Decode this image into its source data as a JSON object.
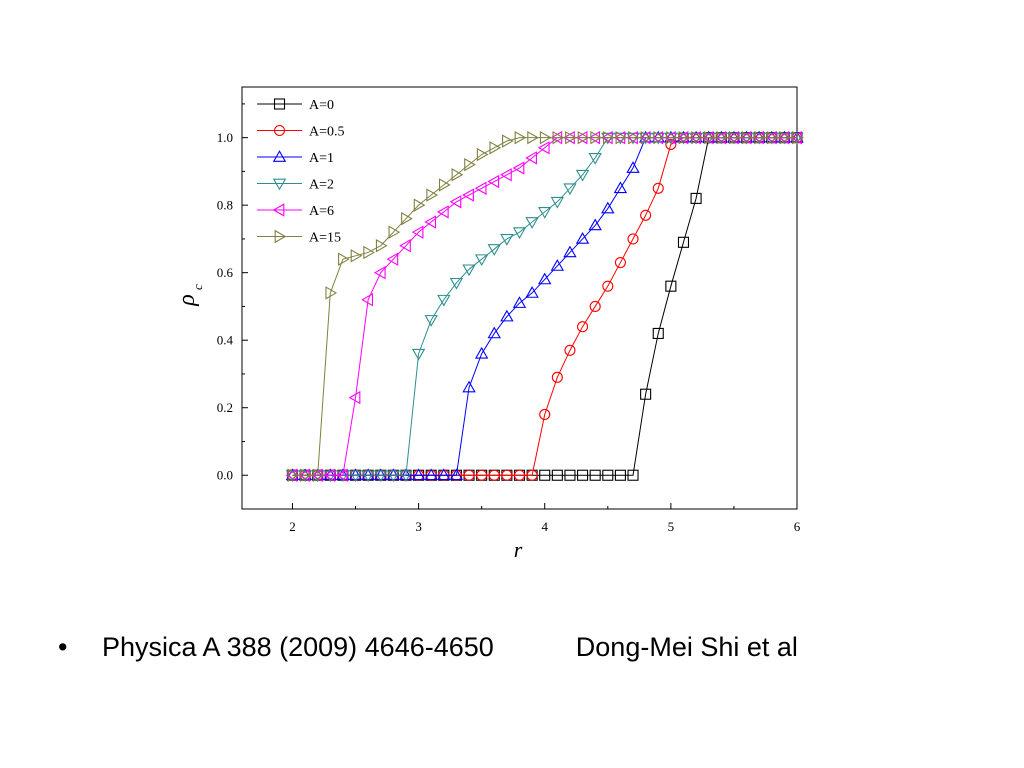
{
  "chart_data": {
    "type": "line",
    "xlabel": "r",
    "ylabel": "ρ",
    "ylabel_sub": "c",
    "xlim": [
      1.6,
      6
    ],
    "ylim": [
      -0.1,
      1.15
    ],
    "xticks": [
      "2",
      "3",
      "4",
      "5",
      "6"
    ],
    "xtick_values": [
      2,
      3,
      4,
      5,
      6
    ],
    "yticks": [
      "0.0",
      "0.2",
      "0.4",
      "0.6",
      "0.8",
      "1.0"
    ],
    "ytick_values": [
      0,
      0.2,
      0.4,
      0.6,
      0.8,
      1.0
    ],
    "legend_position": "top-left",
    "series": [
      {
        "name": "A=0",
        "color": "#000000",
        "marker": "square",
        "x": [
          2.0,
          2.1,
          2.2,
          2.3,
          2.4,
          2.5,
          2.6,
          2.7,
          2.8,
          2.9,
          3.0,
          3.1,
          3.2,
          3.3,
          3.4,
          3.5,
          3.6,
          3.7,
          3.8,
          3.9,
          4.0,
          4.1,
          4.2,
          4.3,
          4.4,
          4.5,
          4.6,
          4.7,
          4.8,
          4.9,
          5.0,
          5.1,
          5.2,
          5.3,
          5.4,
          5.5,
          5.6,
          5.7,
          5.8,
          5.9,
          6.0
        ],
        "y": [
          0,
          0,
          0,
          0,
          0,
          0,
          0,
          0,
          0,
          0,
          0,
          0,
          0,
          0,
          0,
          0,
          0,
          0,
          0,
          0,
          0,
          0,
          0,
          0,
          0,
          0,
          0,
          0,
          0.24,
          0.42,
          0.56,
          0.69,
          0.82,
          1,
          1,
          1,
          1,
          1,
          1,
          1,
          1
        ]
      },
      {
        "name": "A=0.5",
        "color": "#ff0000",
        "marker": "circle",
        "x": [
          2.0,
          2.1,
          2.2,
          2.3,
          2.4,
          2.5,
          2.6,
          2.7,
          2.8,
          2.9,
          3.0,
          3.1,
          3.2,
          3.3,
          3.4,
          3.5,
          3.6,
          3.7,
          3.8,
          3.9,
          4.0,
          4.1,
          4.2,
          4.3,
          4.4,
          4.5,
          4.6,
          4.7,
          4.8,
          4.9,
          5.0,
          5.1,
          5.2,
          5.3,
          5.4,
          5.5,
          5.6,
          5.7,
          5.8,
          5.9,
          6.0
        ],
        "y": [
          0,
          0,
          0,
          0,
          0,
          0,
          0,
          0,
          0,
          0,
          0,
          0,
          0,
          0,
          0,
          0,
          0,
          0,
          0,
          0,
          0.18,
          0.29,
          0.37,
          0.44,
          0.5,
          0.56,
          0.63,
          0.7,
          0.77,
          0.85,
          0.98,
          1,
          1,
          1,
          1,
          1,
          1,
          1,
          1,
          1,
          1
        ]
      },
      {
        "name": "A=1",
        "color": "#0000ff",
        "marker": "triangle-up",
        "x": [
          2.0,
          2.1,
          2.2,
          2.3,
          2.4,
          2.5,
          2.6,
          2.7,
          2.8,
          2.9,
          3.0,
          3.1,
          3.2,
          3.3,
          3.4,
          3.5,
          3.6,
          3.7,
          3.8,
          3.9,
          4.0,
          4.1,
          4.2,
          4.3,
          4.4,
          4.5,
          4.6,
          4.7,
          4.8,
          4.9,
          5.0,
          5.1,
          5.2,
          5.3,
          5.4,
          5.5,
          5.6,
          5.7,
          5.8,
          5.9,
          6.0
        ],
        "y": [
          0,
          0,
          0,
          0,
          0,
          0,
          0,
          0,
          0,
          0,
          0,
          0,
          0,
          0,
          0.26,
          0.36,
          0.42,
          0.47,
          0.51,
          0.54,
          0.58,
          0.62,
          0.66,
          0.7,
          0.74,
          0.79,
          0.85,
          0.91,
          1,
          1,
          1,
          1,
          1,
          1,
          1,
          1,
          1,
          1,
          1,
          1,
          1
        ]
      },
      {
        "name": "A=2",
        "color": "#2f8f8f",
        "marker": "triangle-down",
        "x": [
          2.0,
          2.1,
          2.2,
          2.3,
          2.4,
          2.5,
          2.6,
          2.7,
          2.8,
          2.9,
          3.0,
          3.1,
          3.2,
          3.3,
          3.4,
          3.5,
          3.6,
          3.7,
          3.8,
          3.9,
          4.0,
          4.1,
          4.2,
          4.3,
          4.4,
          4.5,
          4.6,
          4.7,
          4.8,
          4.9,
          5.0,
          5.1,
          5.2,
          5.3,
          5.4,
          5.5,
          5.6,
          5.7,
          5.8,
          5.9,
          6.0
        ],
        "y": [
          0,
          0,
          0,
          0,
          0,
          0,
          0,
          0,
          0,
          0,
          0.36,
          0.46,
          0.52,
          0.57,
          0.61,
          0.64,
          0.67,
          0.7,
          0.72,
          0.75,
          0.78,
          0.81,
          0.85,
          0.89,
          0.94,
          1,
          1,
          1,
          1,
          1,
          1,
          1,
          1,
          1,
          1,
          1,
          1,
          1,
          1,
          1,
          1
        ]
      },
      {
        "name": "A=6",
        "color": "#ff00ff",
        "marker": "triangle-left",
        "x": [
          2.0,
          2.1,
          2.2,
          2.3,
          2.4,
          2.5,
          2.6,
          2.7,
          2.8,
          2.9,
          3.0,
          3.1,
          3.2,
          3.3,
          3.4,
          3.5,
          3.6,
          3.7,
          3.8,
          3.9,
          4.0,
          4.1,
          4.2,
          4.3,
          4.4,
          4.5,
          4.6,
          4.7,
          4.8,
          4.9,
          5.0,
          5.1,
          5.2,
          5.3,
          5.4,
          5.5,
          5.6,
          5.7,
          5.8,
          5.9,
          6.0
        ],
        "y": [
          0,
          0,
          0,
          0,
          0,
          0.23,
          0.52,
          0.6,
          0.64,
          0.68,
          0.72,
          0.75,
          0.78,
          0.81,
          0.83,
          0.85,
          0.87,
          0.89,
          0.91,
          0.94,
          0.97,
          1,
          1,
          1,
          1,
          1,
          1,
          1,
          1,
          1,
          1,
          1,
          1,
          1,
          1,
          1,
          1,
          1,
          1,
          1,
          1
        ]
      },
      {
        "name": "A=15",
        "color": "#808040",
        "marker": "triangle-right",
        "x": [
          2.0,
          2.1,
          2.2,
          2.3,
          2.4,
          2.5,
          2.6,
          2.7,
          2.8,
          2.9,
          3.0,
          3.1,
          3.2,
          3.3,
          3.4,
          3.5,
          3.6,
          3.7,
          3.8,
          3.9,
          4.0,
          4.1,
          4.2,
          4.3,
          4.4,
          4.5,
          4.6,
          4.7,
          4.8,
          4.9,
          5.0,
          5.1,
          5.2,
          5.3,
          5.4,
          5.5,
          5.6,
          5.7,
          5.8,
          5.9,
          6.0
        ],
        "y": [
          0,
          0,
          0,
          0.54,
          0.64,
          0.65,
          0.66,
          0.68,
          0.72,
          0.76,
          0.8,
          0.83,
          0.86,
          0.89,
          0.92,
          0.95,
          0.97,
          0.99,
          1,
          1,
          1,
          1,
          1,
          1,
          1,
          1,
          1,
          1,
          1,
          1,
          1,
          1,
          1,
          1,
          1,
          1,
          1,
          1,
          1,
          1,
          1
        ]
      }
    ]
  },
  "caption": {
    "bullet": "•",
    "citation": "Physica A 388 (2009) 4646-4650",
    "author": "Dong-Mei Shi et al"
  }
}
